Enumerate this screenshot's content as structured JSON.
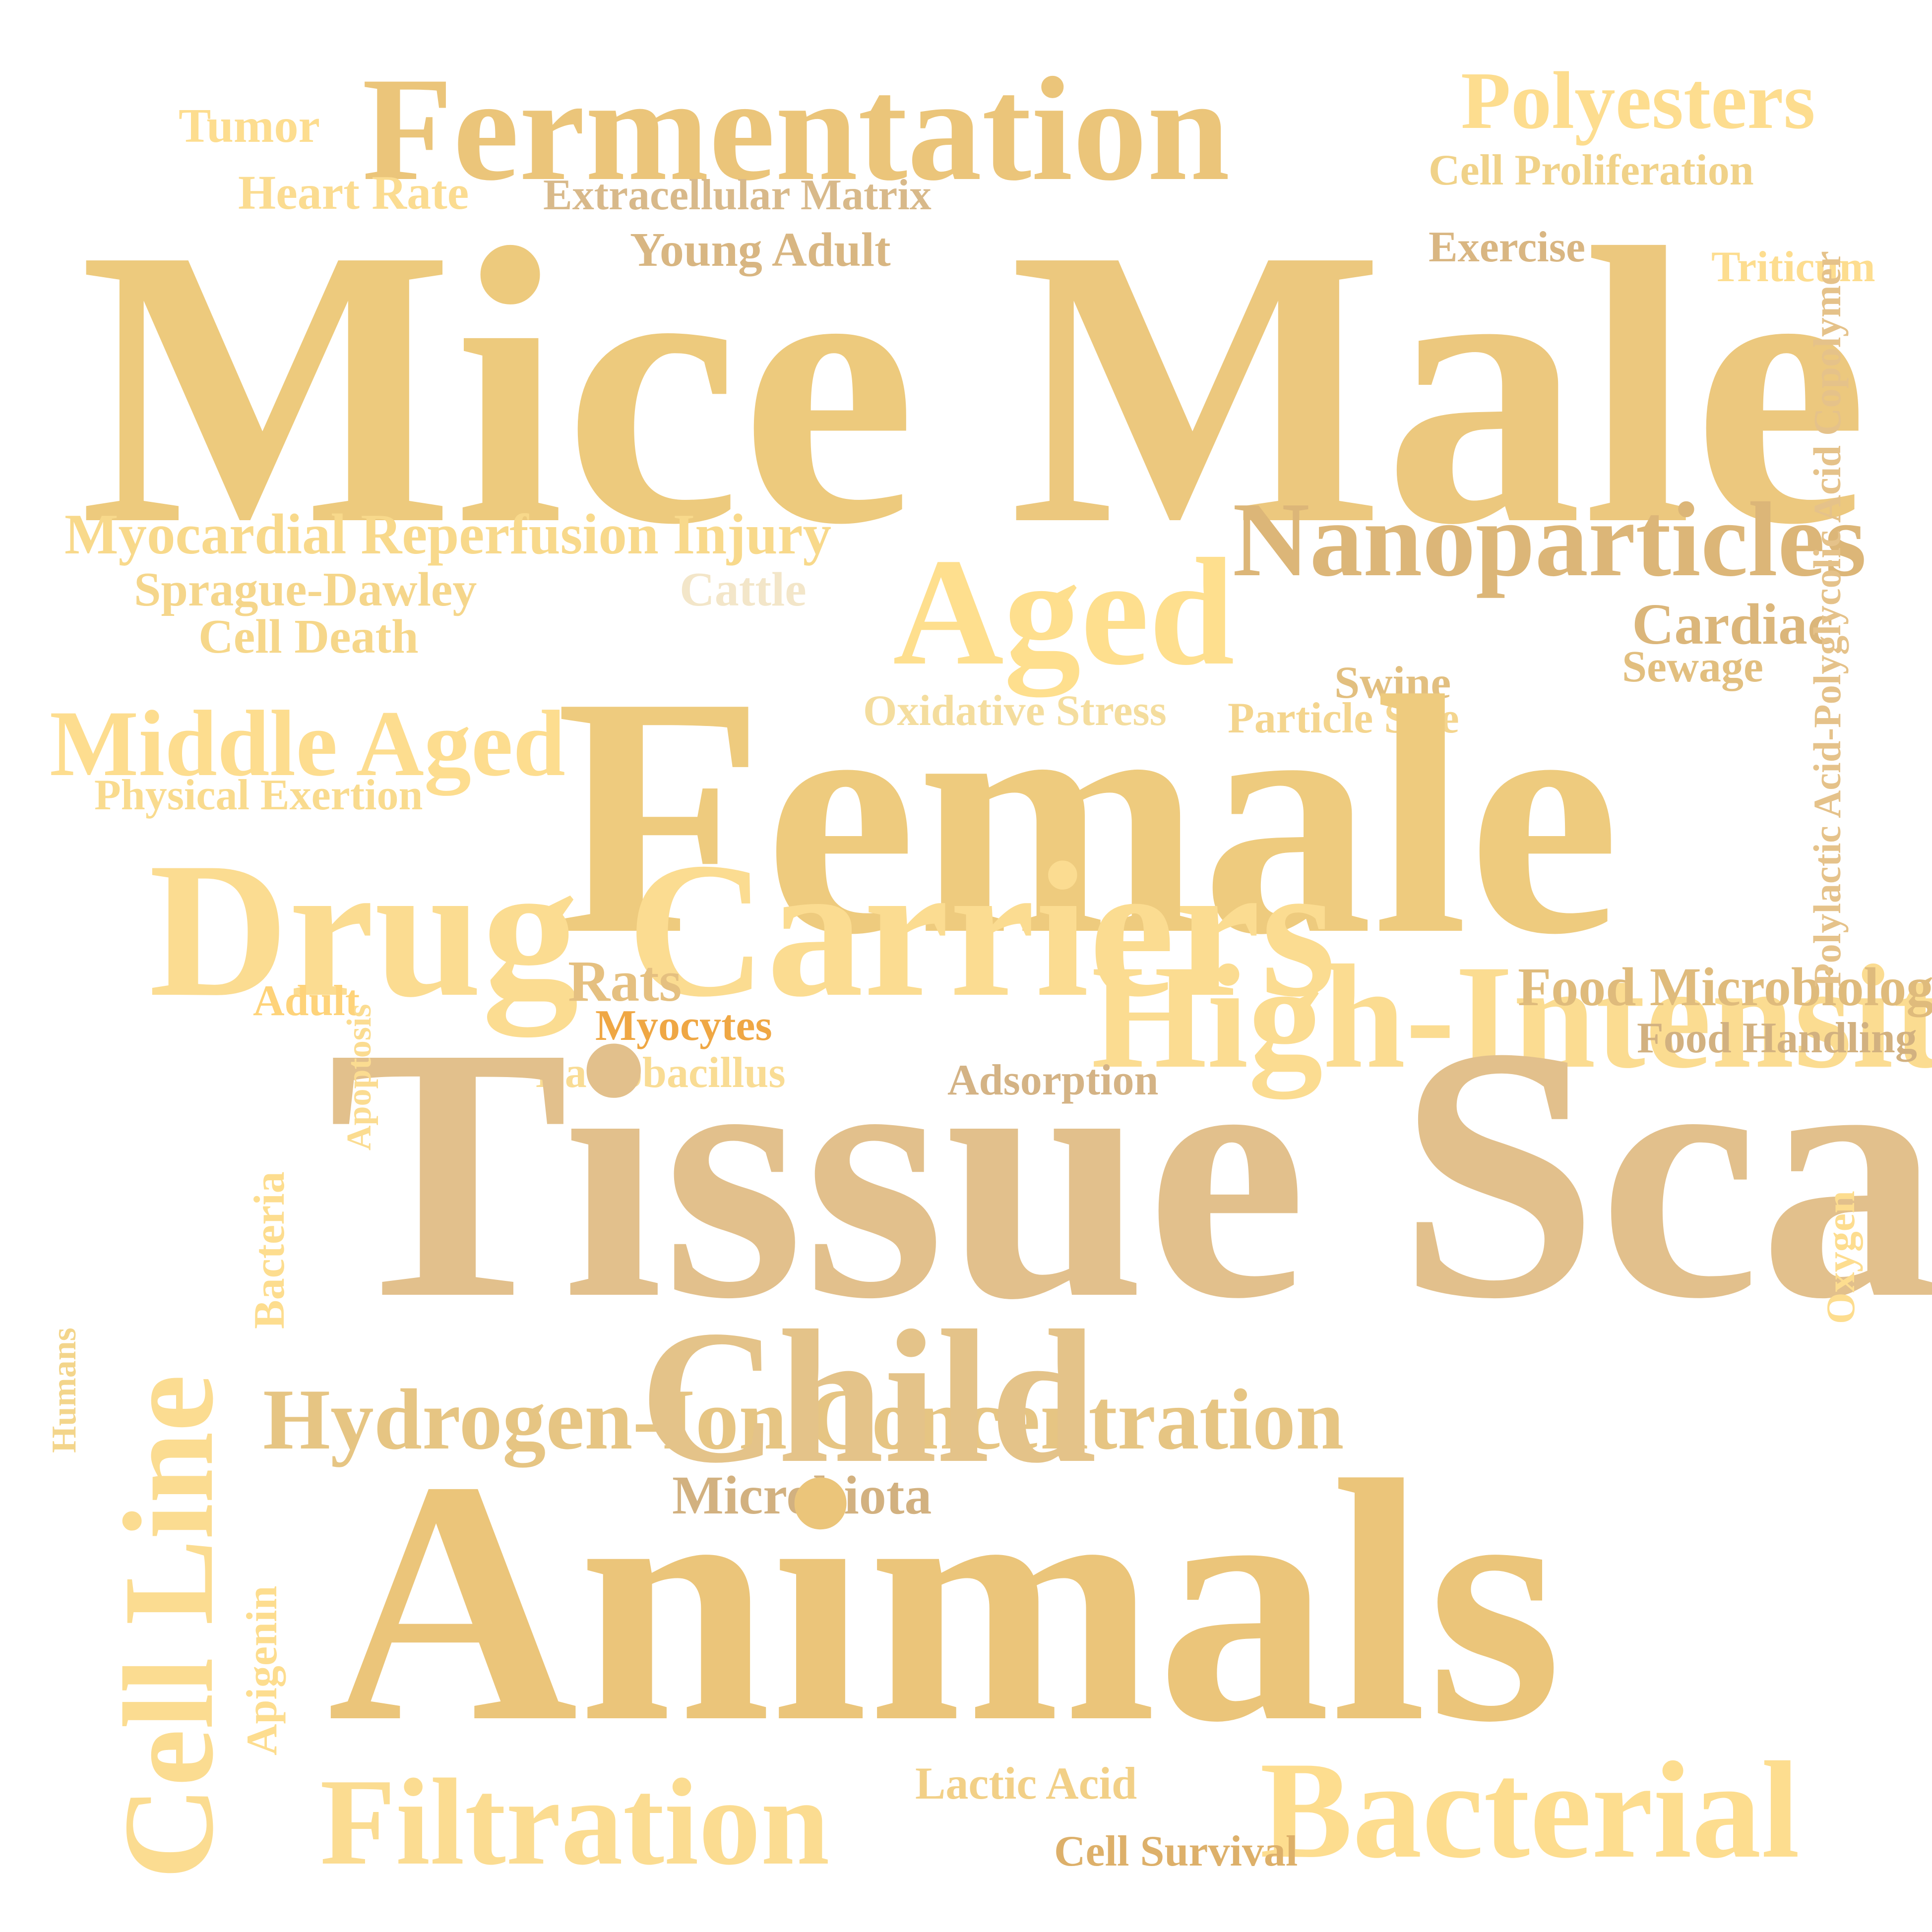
{
  "palette": {
    "gold": "#eccb80",
    "pale_gold": "#fddd8f",
    "tan": "#d9b67a",
    "khaki": "#d2b180",
    "orange": "#efa744",
    "cream": "#f3e6c9"
  },
  "words": [
    {
      "text": "Fermentation",
      "color": "#ebc57a"
    },
    {
      "text": "Polyesters",
      "color": "#fddd8f"
    },
    {
      "text": "Tumor",
      "color": "#fddd8f"
    },
    {
      "text": "Cell Proliferation",
      "color": "#f0d289"
    },
    {
      "text": "Heart Rate",
      "color": "#fbdc91"
    },
    {
      "text": "Extracellular Matrix",
      "color": "#d8b98a"
    },
    {
      "text": "Young Adult",
      "color": "#d8b682"
    },
    {
      "text": "Exercise",
      "color": "#d9b682"
    },
    {
      "text": "Triticum",
      "color": "#fddd8f"
    },
    {
      "text": "Mice",
      "color": "#edca7d"
    },
    {
      "text": "Male",
      "color": "#ecc87e"
    },
    {
      "text": "Nanoparticles",
      "color": "#dcb678"
    },
    {
      "text": "Myocardial Reperfusion Injury",
      "color": "#f8d98b"
    },
    {
      "text": "Aged",
      "color": "#fedf8e"
    },
    {
      "text": "Sprague-Dawley",
      "color": "#f5d68b"
    },
    {
      "text": "Cattle",
      "color": "#f3e6c9"
    },
    {
      "text": "Cell Death",
      "color": "#f6d78a"
    },
    {
      "text": "Cardiac",
      "color": "#dbb67a"
    },
    {
      "text": "Sewage",
      "color": "#e2bf7f"
    },
    {
      "text": "Swine",
      "color": "#e2bf7f"
    },
    {
      "text": "Oxidative Stress",
      "color": "#f4dd9e"
    },
    {
      "text": "Particle Size",
      "color": "#f4d58e"
    },
    {
      "text": "Middle Aged",
      "color": "#fddd8f"
    },
    {
      "text": "Physical Exertion",
      "color": "#f9db8e"
    },
    {
      "text": "Female",
      "color": "#eecb7e"
    },
    {
      "text": "Drug Carriers",
      "color": "#fbdc91"
    },
    {
      "text": "Rats",
      "color": "#e5c080"
    },
    {
      "text": "High-Intensity Interval Training",
      "color": "#fbdc91"
    },
    {
      "text": "Food Microbiology",
      "color": "#dfbb7c"
    },
    {
      "text": "Adult",
      "color": "#fed37a"
    },
    {
      "text": "Myocytes",
      "color": "#efa744"
    },
    {
      "text": "Food Handling",
      "color": "#d2b180"
    },
    {
      "text": "Lactobacillus",
      "color": "#f9dc94"
    },
    {
      "text": "Adsorption",
      "color": "#d4b385"
    },
    {
      "text": "Tissue Scaffolds",
      "color": "#e2c08c"
    },
    {
      "text": "Hydrogen-Ion Concentration",
      "color": "#e6c583"
    },
    {
      "text": "Child",
      "color": "#e4c389"
    },
    {
      "text": "Microbiota",
      "color": "#d2b180"
    },
    {
      "text": "Animals",
      "color": "#ebc57a"
    },
    {
      "text": "Filtration",
      "color": "#fbdc91"
    },
    {
      "text": "Lactic Acid",
      "color": "#f2d087"
    },
    {
      "text": "Bacterial",
      "color": "#fddd8f"
    },
    {
      "text": "Cell Survival",
      "color": "#ddb06a"
    },
    {
      "text": "Polylactic Acid-Polyglycolic Acid Copolymer",
      "color": "#e5c28a"
    },
    {
      "text": "Humans",
      "color": "#f3d58b"
    },
    {
      "text": "Apoptosis",
      "color": "#fbdc91"
    },
    {
      "text": "Bacteria",
      "color": "#fddd8f"
    },
    {
      "text": "Oxygen",
      "color": "#fddd8f"
    },
    {
      "text": "Cell Line",
      "color": "#fbdc91"
    },
    {
      "text": "Apigenin",
      "color": "#fddd8f"
    }
  ]
}
